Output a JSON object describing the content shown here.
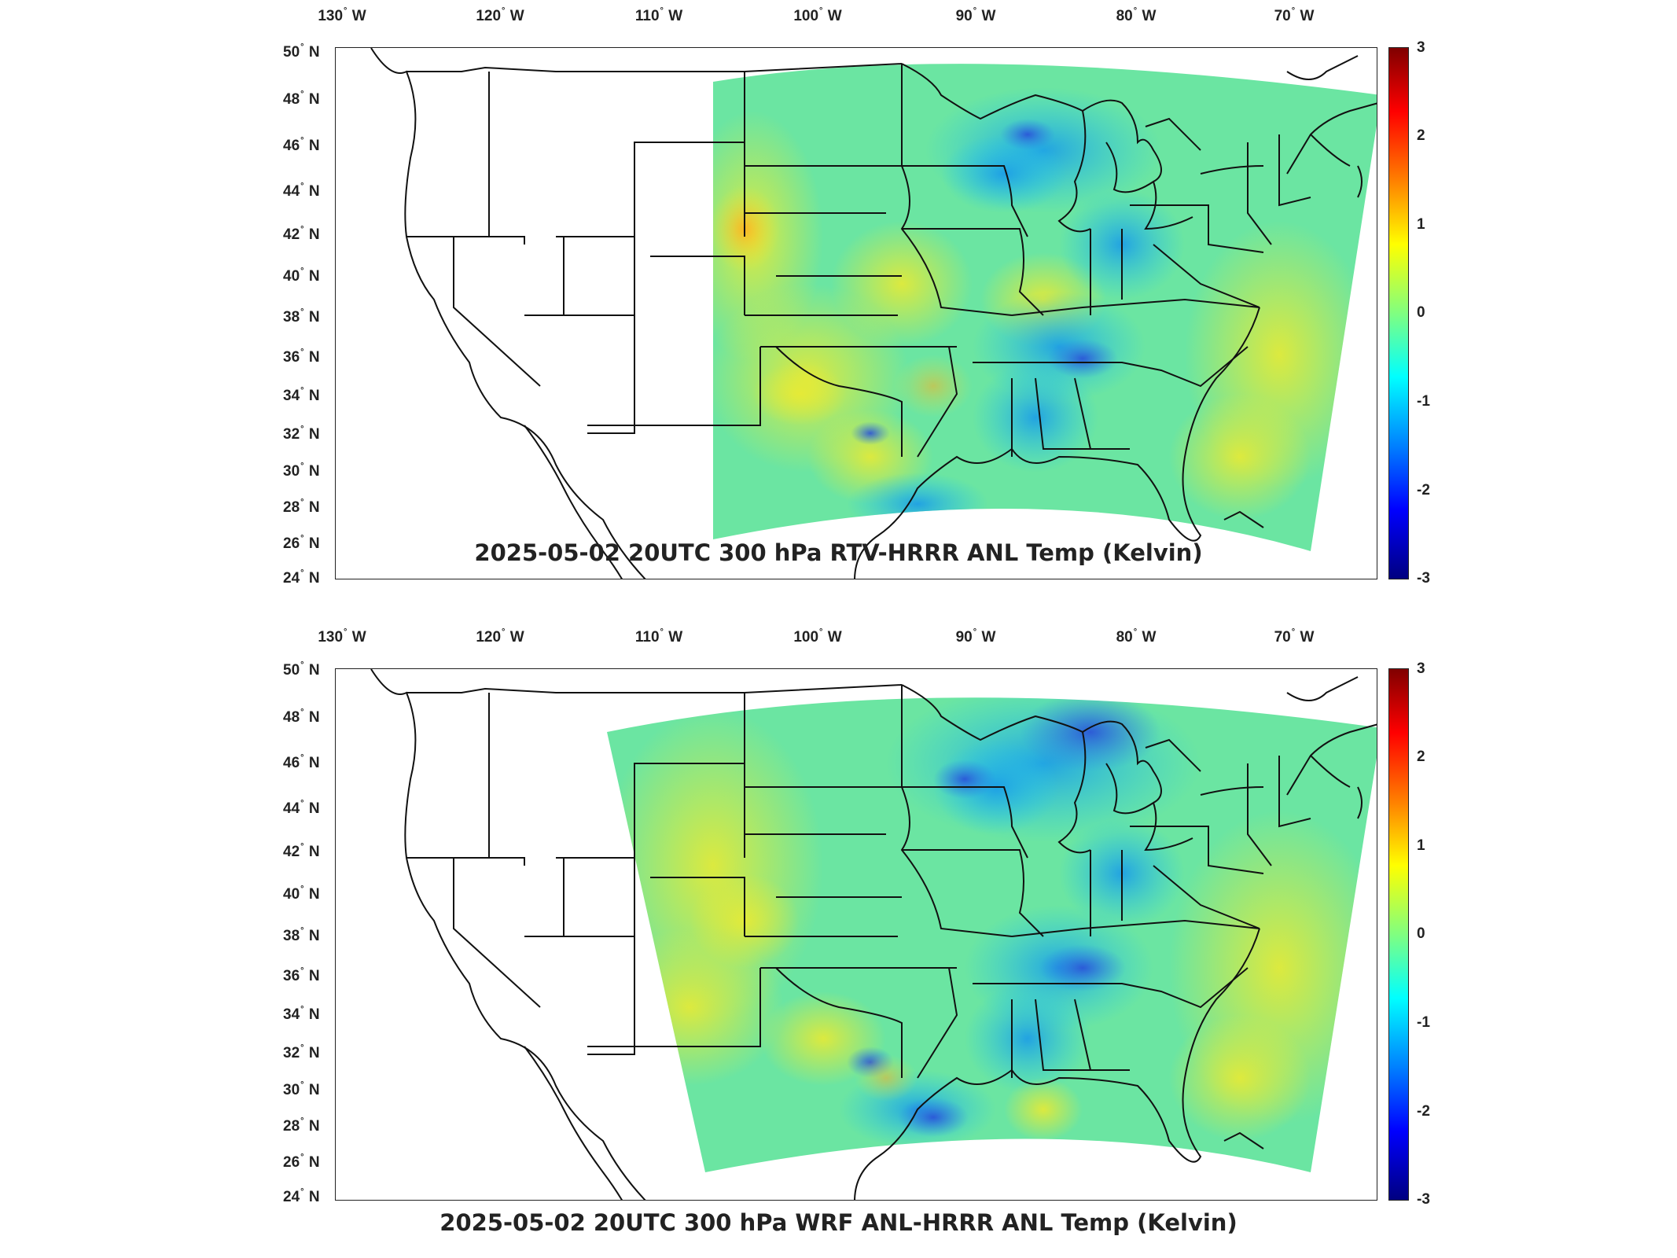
{
  "panels": [
    {
      "title": "2025-05-02 20UTC 300 hPa RTV-HRRR ANL Temp (Kelvin)",
      "lon_labels": [
        {
          "deg": "130",
          "dir": "W"
        },
        {
          "deg": "120",
          "dir": "W"
        },
        {
          "deg": "110",
          "dir": "W"
        },
        {
          "deg": "100",
          "dir": "W"
        },
        {
          "deg": "90",
          "dir": "W"
        },
        {
          "deg": "80",
          "dir": "W"
        },
        {
          "deg": "70",
          "dir": "W"
        }
      ],
      "lat_labels": [
        {
          "deg": "50",
          "dir": "N"
        },
        {
          "deg": "48",
          "dir": "N"
        },
        {
          "deg": "46",
          "dir": "N"
        },
        {
          "deg": "44",
          "dir": "N"
        },
        {
          "deg": "42",
          "dir": "N"
        },
        {
          "deg": "40",
          "dir": "N"
        },
        {
          "deg": "38",
          "dir": "N"
        },
        {
          "deg": "36",
          "dir": "N"
        },
        {
          "deg": "34",
          "dir": "N"
        },
        {
          "deg": "32",
          "dir": "N"
        },
        {
          "deg": "30",
          "dir": "N"
        },
        {
          "deg": "28",
          "dir": "N"
        },
        {
          "deg": "26",
          "dir": "N"
        },
        {
          "deg": "24",
          "dir": "N"
        }
      ],
      "colorbar": {
        "min": -3,
        "max": 3,
        "ticks": [
          "3",
          "2",
          "1",
          "0",
          "-1",
          "-2",
          "-3"
        ]
      }
    },
    {
      "title": "2025-05-02 20UTC 300 hPa WRF ANL-HRRR ANL Temp (Kelvin)",
      "lon_labels": [
        {
          "deg": "130",
          "dir": "W"
        },
        {
          "deg": "120",
          "dir": "W"
        },
        {
          "deg": "110",
          "dir": "W"
        },
        {
          "deg": "100",
          "dir": "W"
        },
        {
          "deg": "90",
          "dir": "W"
        },
        {
          "deg": "80",
          "dir": "W"
        },
        {
          "deg": "70",
          "dir": "W"
        }
      ],
      "lat_labels": [
        {
          "deg": "50",
          "dir": "N"
        },
        {
          "deg": "48",
          "dir": "N"
        },
        {
          "deg": "46",
          "dir": "N"
        },
        {
          "deg": "44",
          "dir": "N"
        },
        {
          "deg": "42",
          "dir": "N"
        },
        {
          "deg": "40",
          "dir": "N"
        },
        {
          "deg": "38",
          "dir": "N"
        },
        {
          "deg": "36",
          "dir": "N"
        },
        {
          "deg": "34",
          "dir": "N"
        },
        {
          "deg": "32",
          "dir": "N"
        },
        {
          "deg": "30",
          "dir": "N"
        },
        {
          "deg": "28",
          "dir": "N"
        },
        {
          "deg": "26",
          "dir": "N"
        },
        {
          "deg": "24",
          "dir": "N"
        }
      ],
      "colorbar": {
        "min": -3,
        "max": 3,
        "ticks": [
          "3",
          "2",
          "1",
          "0",
          "-1",
          "-2",
          "-3"
        ]
      }
    }
  ],
  "colormap": "jet",
  "colors": {
    "field_base": "#4fe0b0",
    "cold": "#1fb8ee",
    "warm": "#e6e83a",
    "outline": "#111111"
  }
}
